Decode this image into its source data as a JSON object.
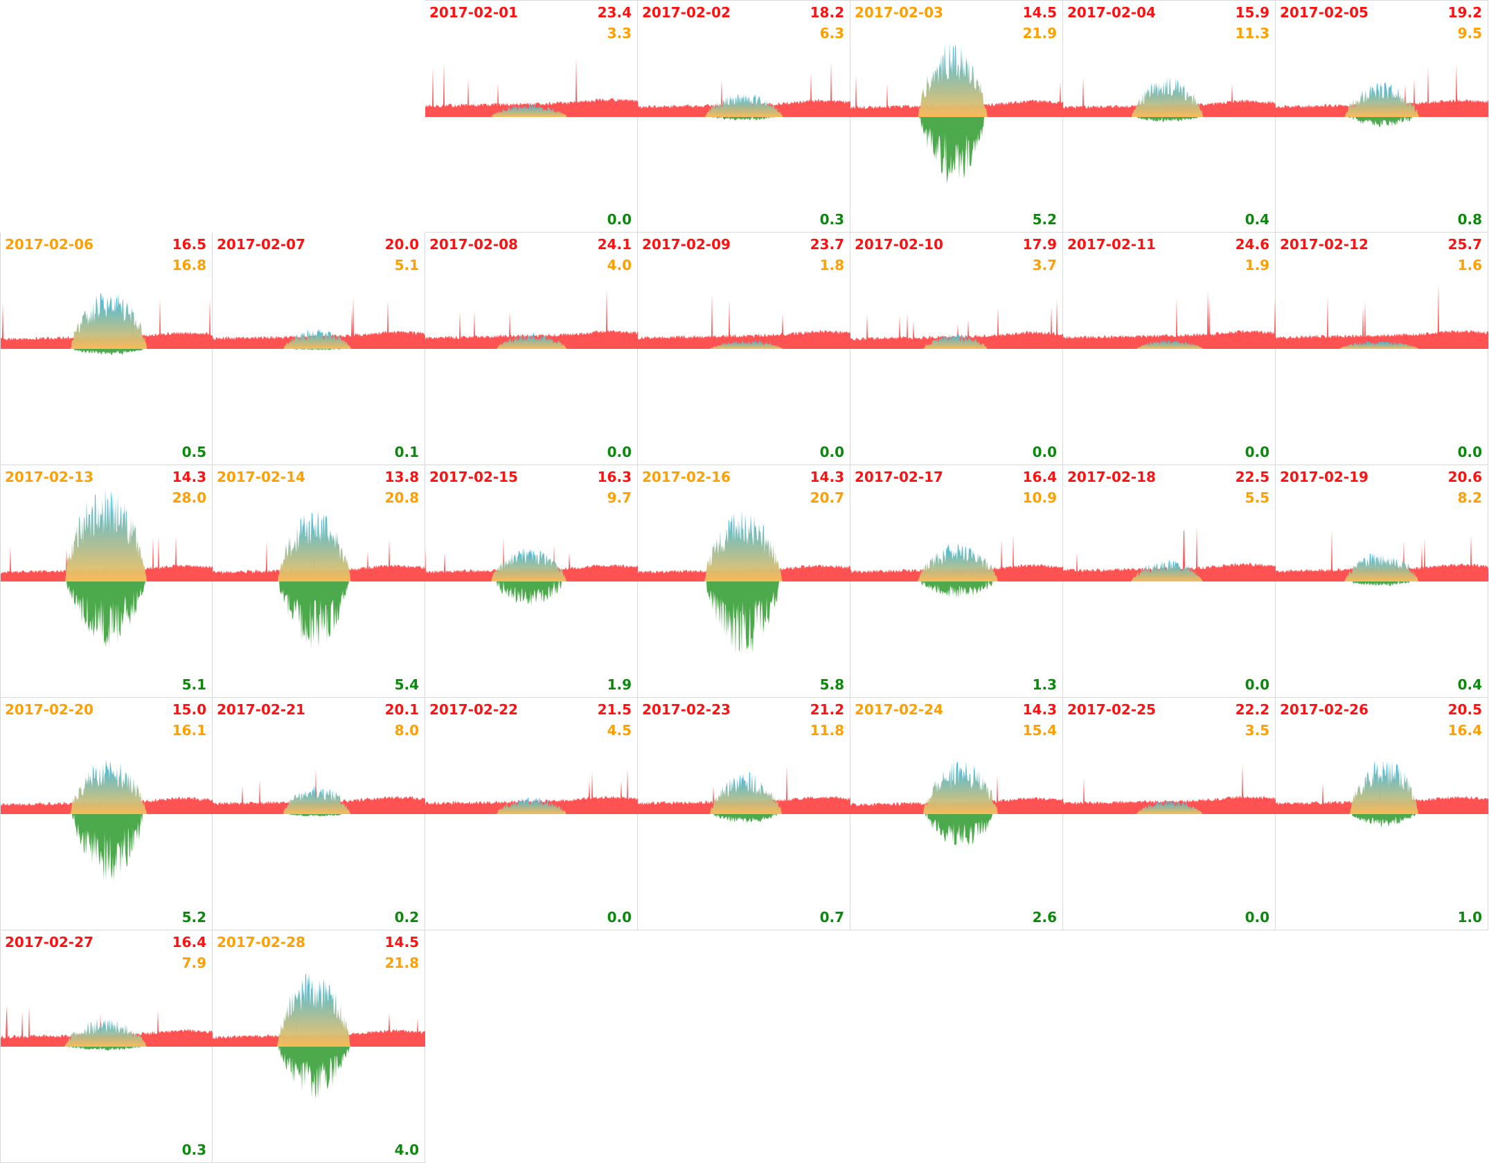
{
  "colors": {
    "consumption": "#ff5252",
    "production": "#f9c05a",
    "production_peak": "#29b6e8",
    "export": "#4caa4c",
    "date_normal": "#ff1111",
    "date_high_production": "#ffa000",
    "value_consumption": "#ff1111",
    "value_production": "#ffa000",
    "value_export": "#0a8a0a"
  },
  "chart_data": {
    "type": "area",
    "title": "",
    "xlabel": "",
    "ylabel": "",
    "layout": "calendar-grid, 7 columns (weekday), first day in column 3",
    "series_names": [
      "consumption",
      "production",
      "export"
    ],
    "days": [
      {
        "date": "2017-02-01",
        "consumption": "23.4",
        "production": "3.3",
        "export": "0.0",
        "highlight": false
      },
      {
        "date": "2017-02-02",
        "consumption": "18.2",
        "production": "6.3",
        "export": "0.3",
        "highlight": false
      },
      {
        "date": "2017-02-03",
        "consumption": "14.5",
        "production": "21.9",
        "export": "5.2",
        "highlight": true
      },
      {
        "date": "2017-02-04",
        "consumption": "15.9",
        "production": "11.3",
        "export": "0.4",
        "highlight": false
      },
      {
        "date": "2017-02-05",
        "consumption": "19.2",
        "production": "9.5",
        "export": "0.8",
        "highlight": false
      },
      {
        "date": "2017-02-06",
        "consumption": "16.5",
        "production": "16.8",
        "export": "0.5",
        "highlight": true
      },
      {
        "date": "2017-02-07",
        "consumption": "20.0",
        "production": "5.1",
        "export": "0.1",
        "highlight": false
      },
      {
        "date": "2017-02-08",
        "consumption": "24.1",
        "production": "4.0",
        "export": "0.0",
        "highlight": false
      },
      {
        "date": "2017-02-09",
        "consumption": "23.7",
        "production": "1.8",
        "export": "0.0",
        "highlight": false
      },
      {
        "date": "2017-02-10",
        "consumption": "17.9",
        "production": "3.7",
        "export": "0.0",
        "highlight": false
      },
      {
        "date": "2017-02-11",
        "consumption": "24.6",
        "production": "1.9",
        "export": "0.0",
        "highlight": false
      },
      {
        "date": "2017-02-12",
        "consumption": "25.7",
        "production": "1.6",
        "export": "0.0",
        "highlight": false
      },
      {
        "date": "2017-02-13",
        "consumption": "14.3",
        "production": "28.0",
        "export": "5.1",
        "highlight": true
      },
      {
        "date": "2017-02-14",
        "consumption": "13.8",
        "production": "20.8",
        "export": "5.4",
        "highlight": true
      },
      {
        "date": "2017-02-15",
        "consumption": "16.3",
        "production": "9.7",
        "export": "1.9",
        "highlight": false
      },
      {
        "date": "2017-02-16",
        "consumption": "14.3",
        "production": "20.7",
        "export": "5.8",
        "highlight": true
      },
      {
        "date": "2017-02-17",
        "consumption": "16.4",
        "production": "10.9",
        "export": "1.3",
        "highlight": false
      },
      {
        "date": "2017-02-18",
        "consumption": "22.5",
        "production": "5.5",
        "export": "0.0",
        "highlight": false
      },
      {
        "date": "2017-02-19",
        "consumption": "20.6",
        "production": "8.2",
        "export": "0.4",
        "highlight": false
      },
      {
        "date": "2017-02-20",
        "consumption": "15.0",
        "production": "16.1",
        "export": "5.2",
        "highlight": true
      },
      {
        "date": "2017-02-21",
        "consumption": "20.1",
        "production": "8.0",
        "export": "0.2",
        "highlight": false
      },
      {
        "date": "2017-02-22",
        "consumption": "21.5",
        "production": "4.5",
        "export": "0.0",
        "highlight": false
      },
      {
        "date": "2017-02-23",
        "consumption": "21.2",
        "production": "11.8",
        "export": "0.7",
        "highlight": false
      },
      {
        "date": "2017-02-24",
        "consumption": "14.3",
        "production": "15.4",
        "export": "2.6",
        "highlight": true
      },
      {
        "date": "2017-02-25",
        "consumption": "22.2",
        "production": "3.5",
        "export": "0.0",
        "highlight": false
      },
      {
        "date": "2017-02-26",
        "consumption": "20.5",
        "production": "16.4",
        "export": "1.0",
        "highlight": false
      },
      {
        "date": "2017-02-27",
        "consumption": "16.4",
        "production": "7.9",
        "export": "0.3",
        "highlight": false
      },
      {
        "date": "2017-02-28",
        "consumption": "14.5",
        "production": "21.8",
        "export": "4.0",
        "highlight": true
      }
    ]
  }
}
